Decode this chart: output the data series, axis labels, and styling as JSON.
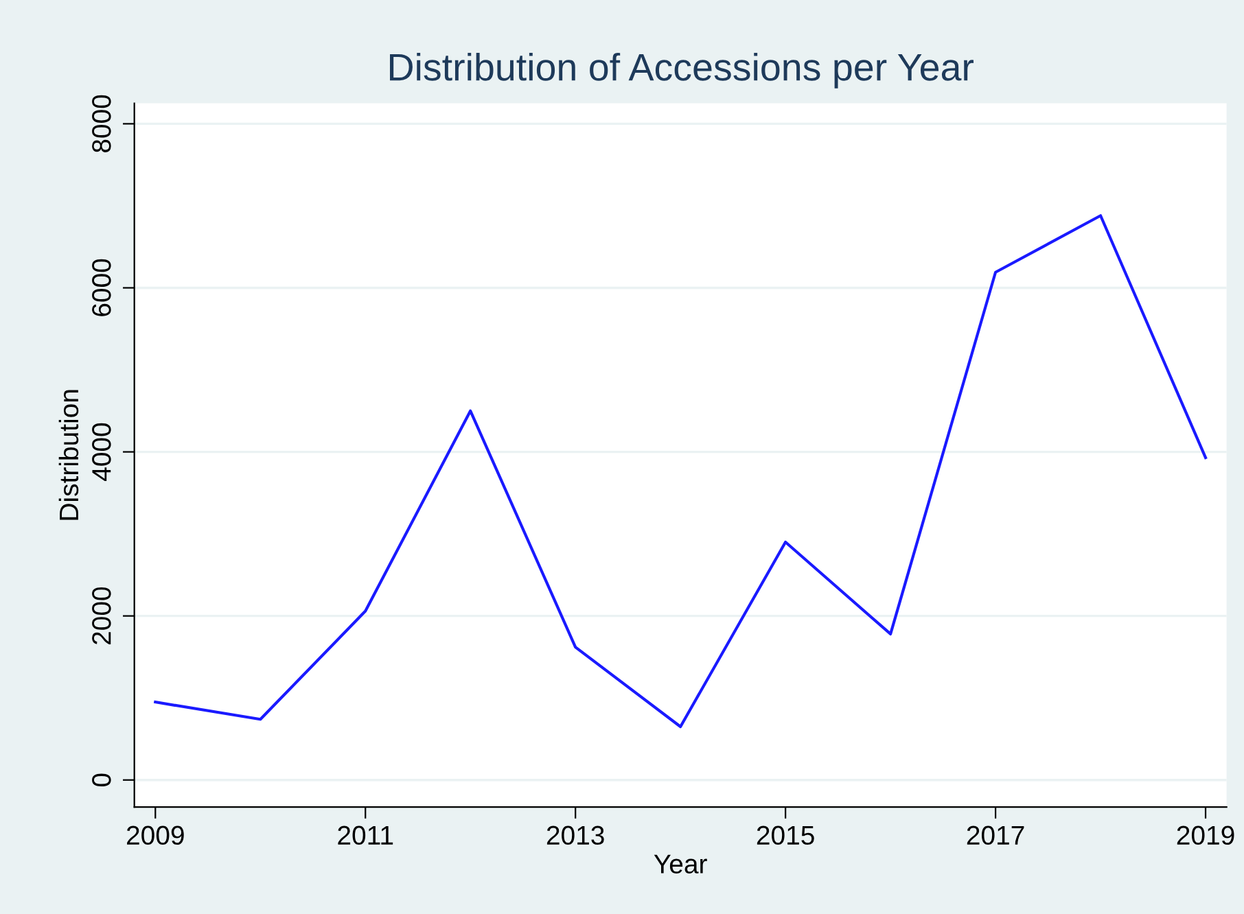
{
  "chart_data": {
    "type": "line",
    "title": "Distribution of Accessions per Year",
    "xlabel": "Year",
    "ylabel": "Distribution",
    "x": [
      2009,
      2010,
      2011,
      2012,
      2013,
      2014,
      2015,
      2016,
      2017,
      2018,
      2019
    ],
    "series": [
      {
        "color": "#1a1aff",
        "values": [
          950,
          740,
          2060,
          4500,
          1620,
          650,
          2900,
          1780,
          6190,
          6880,
          3930
        ]
      }
    ],
    "xlim": [
      2008.8,
      2019.2
    ],
    "xticks": [
      2009,
      2011,
      2013,
      2015,
      2017,
      2019
    ],
    "ylim": [
      -330,
      8250
    ],
    "yticks": [
      0,
      2000,
      4000,
      6000,
      8000
    ],
    "grid": "y",
    "legend": false,
    "marker": "none",
    "line_style": "solid"
  }
}
